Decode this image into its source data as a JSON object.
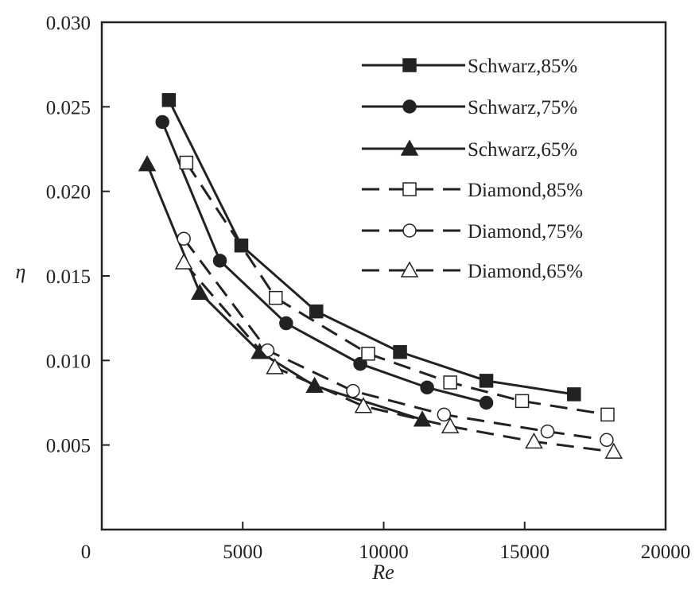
{
  "chart_data": {
    "type": "line",
    "title": "",
    "xlabel": "Re",
    "ylabel": "η",
    "xlim": [
      0,
      20000
    ],
    "ylim": [
      0,
      0.03
    ],
    "xticks": [
      "0",
      "5000",
      "10000",
      "15000",
      "20000"
    ],
    "yticks": [
      "0.005",
      "0.010",
      "0.015",
      "0.020",
      "0.025",
      "0.030"
    ],
    "grid": false,
    "legend_position": "top-right",
    "series": [
      {
        "name": "Schwarz,85%",
        "marker": "square-filled",
        "line": "solid",
        "x": [
          2380,
          4950,
          7610,
          10580,
          13640,
          16750
        ],
        "y": [
          0.0254,
          0.0168,
          0.0129,
          0.0105,
          0.0088,
          0.008
        ]
      },
      {
        "name": "Schwarz,75%",
        "marker": "circle-filled",
        "line": "solid",
        "x": [
          2150,
          4190,
          6540,
          9170,
          11540,
          13640
        ],
        "y": [
          0.0241,
          0.0159,
          0.0122,
          0.0098,
          0.0084,
          0.0075
        ]
      },
      {
        "name": "Schwarz,65%",
        "marker": "triangle-filled",
        "line": "solid",
        "x": [
          1610,
          3480,
          5600,
          7550,
          11370
        ],
        "y": [
          0.0216,
          0.014,
          0.0105,
          0.0085,
          0.0065
        ]
      },
      {
        "name": "Diamond,85%",
        "marker": "square-open",
        "line": "dashed",
        "x": [
          3000,
          6170,
          9450,
          12360,
          14910,
          17940
        ],
        "y": [
          0.0217,
          0.0137,
          0.0104,
          0.0087,
          0.0076,
          0.0068
        ]
      },
      {
        "name": "Diamond,75%",
        "marker": "circle-open",
        "line": "dashed",
        "x": [
          2910,
          5880,
          8910,
          12140,
          15810,
          17910
        ],
        "y": [
          0.0172,
          0.0106,
          0.0082,
          0.0068,
          0.0058,
          0.0053
        ]
      },
      {
        "name": "Diamond,65%",
        "marker": "triangle-open",
        "line": "dashed",
        "x": [
          2910,
          6140,
          9280,
          12360,
          15330,
          18160
        ],
        "y": [
          0.0158,
          0.0096,
          0.0073,
          0.0061,
          0.0052,
          0.0046
        ]
      }
    ]
  }
}
